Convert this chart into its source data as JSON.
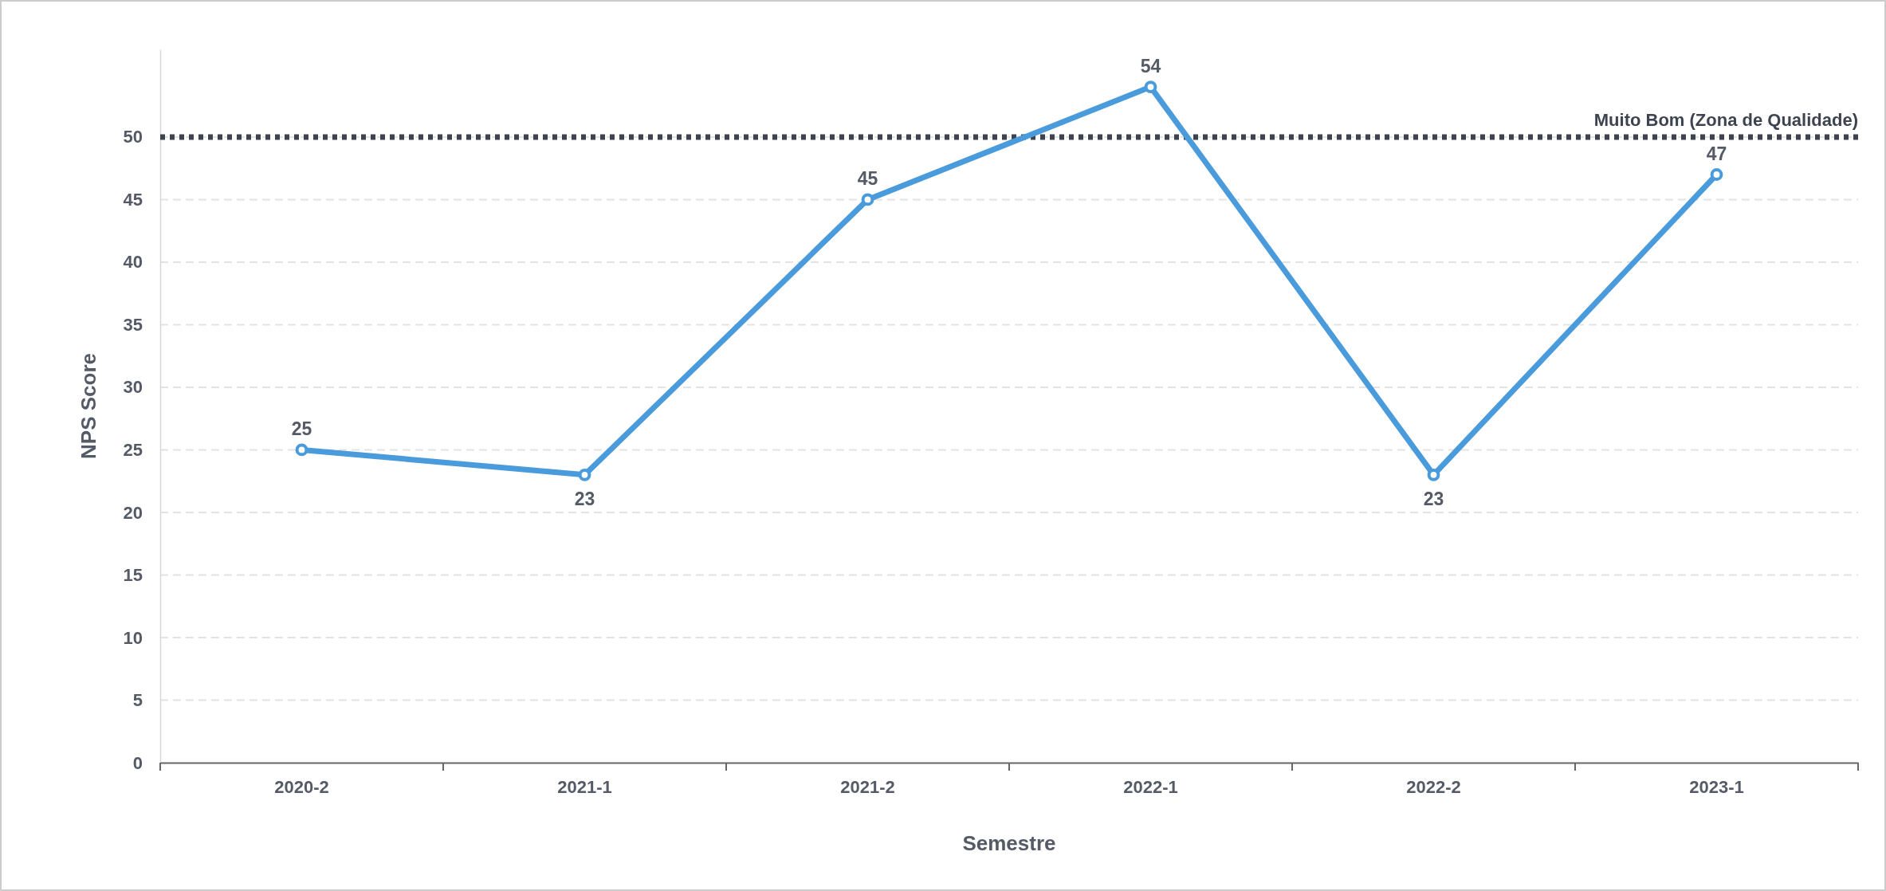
{
  "chart_data": {
    "type": "line",
    "xlabel": "Semestre",
    "ylabel": "NPS Score",
    "categories": [
      "2020-2",
      "2021-1",
      "2021-2",
      "2022-1",
      "2022-2",
      "2023-1"
    ],
    "series": [
      {
        "color": "#4a9bdb",
        "values": [
          25,
          23,
          45,
          54,
          23,
          47
        ]
      }
    ],
    "ylim": [
      0,
      57
    ],
    "yticks": [
      0,
      5,
      10,
      15,
      20,
      25,
      30,
      35,
      40,
      45,
      50
    ],
    "grid": "y",
    "marker": "circle",
    "line_style": "solid",
    "data_labels": true,
    "ref_lines": [
      {
        "axis": "y",
        "value": 50,
        "label": "Muito Bom (Zona de Qualidade)",
        "color": "#3d4450",
        "line_style": "dotted"
      }
    ]
  }
}
